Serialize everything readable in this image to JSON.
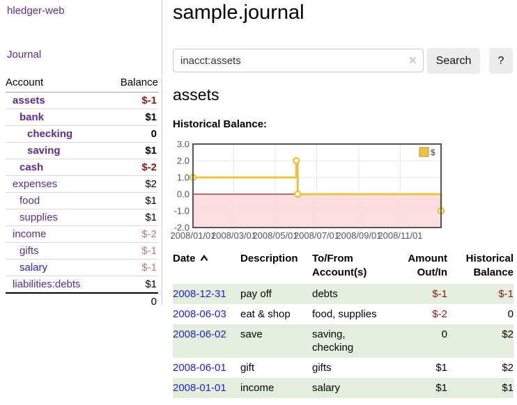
{
  "app": {
    "brand": "hledger-web"
  },
  "nav": {
    "journal": "Journal"
  },
  "sidebar": {
    "headers": {
      "account": "Account",
      "balance": "Balance"
    },
    "accounts": [
      {
        "name": "assets",
        "level": 0,
        "bold": true,
        "balance": "$-1",
        "balance_class": "neg"
      },
      {
        "name": "bank",
        "level": 1,
        "bold": true,
        "balance": "$1",
        "balance_class": ""
      },
      {
        "name": "checking",
        "level": 2,
        "bold": true,
        "balance": "0",
        "balance_class": ""
      },
      {
        "name": "saving",
        "level": 2,
        "bold": true,
        "balance": "$1",
        "balance_class": ""
      },
      {
        "name": "cash",
        "level": 1,
        "bold": true,
        "balance": "$-2",
        "balance_class": "neg"
      },
      {
        "name": "expenses",
        "level": 0,
        "bold": false,
        "balance": "$2",
        "balance_class": ""
      },
      {
        "name": "food",
        "level": 1,
        "bold": false,
        "balance": "$1",
        "balance_class": ""
      },
      {
        "name": "supplies",
        "level": 1,
        "bold": false,
        "balance": "$1",
        "balance_class": ""
      },
      {
        "name": "income",
        "level": 0,
        "bold": false,
        "balance": "$-2",
        "balance_class": "neg-soft"
      },
      {
        "name": "gifts",
        "level": 1,
        "bold": false,
        "balance": "$-1",
        "balance_class": "neg-soft"
      },
      {
        "name": "salary",
        "level": 1,
        "bold": false,
        "balance": "$-1",
        "balance_class": "neg-soft",
        "name_class": "blue"
      },
      {
        "name": "liabilities:debts",
        "level": 0,
        "bold": false,
        "balance": "$1",
        "balance_class": ""
      }
    ],
    "total": "0"
  },
  "main": {
    "title": "sample.journal",
    "search": {
      "value": "inacct:assets",
      "clear_icon": "✕",
      "search_button": "Search",
      "help_button": "?"
    },
    "account_heading": "assets",
    "section_label": "Historical Balance:"
  },
  "chart_data": {
    "type": "line",
    "step": true,
    "title": "Historical Balance",
    "x_range": [
      "2008-01-01",
      "2008-12-31"
    ],
    "ylim": [
      -2,
      3
    ],
    "yticks": [
      "3.0",
      "2.0",
      "1.0",
      "0.0",
      "-1.0",
      "-2.0"
    ],
    "xticks": [
      "2008/01/01",
      "2008/03/01",
      "2008/05/01",
      "2008/07/01",
      "2008/09/01",
      "2008/11/01"
    ],
    "series": [
      {
        "name": "$",
        "color": "#edc240",
        "points": [
          [
            "2008-01-01",
            1
          ],
          [
            "2008-06-01",
            2
          ],
          [
            "2008-06-03",
            0
          ],
          [
            "2008-12-31",
            -1
          ]
        ]
      }
    ],
    "legend_position": "top-right",
    "grid": true,
    "negative_fill": "#fcdede",
    "zero_line_color": "#8b2020",
    "grid_color": "#e6e6e6",
    "border_color": "#545454",
    "tick_color": "#545454",
    "legend_swatch_border": "#b89730"
  },
  "register": {
    "headers": {
      "date": "Date",
      "description": "Description",
      "accounts": "To/From Account(s)",
      "amount": "Amount Out/In",
      "balance": "Historical Balance"
    },
    "sort": "ascending",
    "rows": [
      {
        "date": "2008-12-31",
        "description": "pay off",
        "accounts": "debts",
        "amount": "$-1",
        "balance": "$-1",
        "amount_neg": true,
        "balance_neg": true,
        "shaded": true
      },
      {
        "date": "2008-06-03",
        "description": "eat & shop",
        "accounts": "food, supplies",
        "amount": "$-2",
        "balance": "0",
        "amount_neg": true,
        "balance_neg": false,
        "shaded": false
      },
      {
        "date": "2008-06-02",
        "description": "save",
        "accounts": "saving, checking",
        "amount": "0",
        "balance": "$2",
        "amount_neg": false,
        "balance_neg": false,
        "shaded": true
      },
      {
        "date": "2008-06-01",
        "description": "gift",
        "accounts": "gifts",
        "amount": "$1",
        "balance": "$2",
        "amount_neg": false,
        "balance_neg": false,
        "shaded": false
      },
      {
        "date": "2008-01-01",
        "description": "income",
        "accounts": "salary",
        "amount": "$1",
        "balance": "$1",
        "amount_neg": false,
        "balance_neg": false,
        "shaded": true
      }
    ]
  },
  "colors": {
    "accent_purple": "#5c2d91",
    "link_blue": "#2222cc",
    "negative": "#8b1a1a",
    "negative_soft": "#bd7878",
    "row_green": "#e3efdc",
    "series_gold": "#edc240"
  }
}
